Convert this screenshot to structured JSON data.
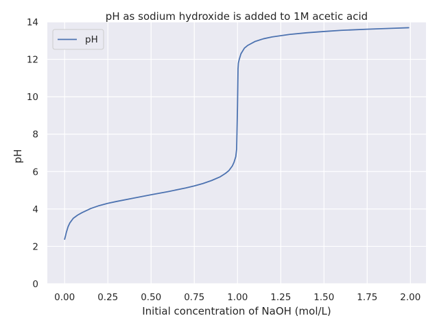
{
  "chart_data": {
    "type": "line",
    "title": "pH as sodium hydroxide is added to 1M acetic acid",
    "xlabel": "Initial concentration of NaOH (mol/L)",
    "ylabel": "pH",
    "xlim": [
      -0.1,
      2.09
    ],
    "ylim": [
      0,
      14
    ],
    "xticks": [
      "0.00",
      "0.25",
      "0.50",
      "0.75",
      "1.00",
      "1.25",
      "1.50",
      "1.75",
      "2.00"
    ],
    "yticks": [
      "0",
      "2",
      "4",
      "6",
      "8",
      "10",
      "12",
      "14"
    ],
    "grid": true,
    "legend_position": "top-left",
    "colors": {
      "background": "#eaeaf2",
      "grid": "#ffffff",
      "line": "#4c72b0"
    },
    "series": [
      {
        "name": "pH",
        "x": [
          0.0,
          0.005,
          0.01,
          0.02,
          0.03,
          0.05,
          0.075,
          0.1,
          0.15,
          0.2,
          0.25,
          0.3,
          0.4,
          0.5,
          0.6,
          0.7,
          0.75,
          0.8,
          0.85,
          0.9,
          0.93,
          0.95,
          0.97,
          0.98,
          0.99,
          0.995,
          1.0,
          1.003,
          1.005,
          1.01,
          1.02,
          1.04,
          1.06,
          1.1,
          1.15,
          1.2,
          1.3,
          1.4,
          1.5,
          1.6,
          1.75,
          1.9,
          1.99
        ],
        "y": [
          2.38,
          2.55,
          2.75,
          3.05,
          3.25,
          3.5,
          3.67,
          3.8,
          4.02,
          4.18,
          4.3,
          4.4,
          4.58,
          4.76,
          4.93,
          5.12,
          5.23,
          5.36,
          5.52,
          5.72,
          5.9,
          6.05,
          6.3,
          6.5,
          6.8,
          7.2,
          9.5,
          11.5,
          11.8,
          12.0,
          12.3,
          12.6,
          12.75,
          12.95,
          13.1,
          13.2,
          13.33,
          13.42,
          13.49,
          13.55,
          13.61,
          13.66,
          13.69
        ]
      }
    ]
  }
}
